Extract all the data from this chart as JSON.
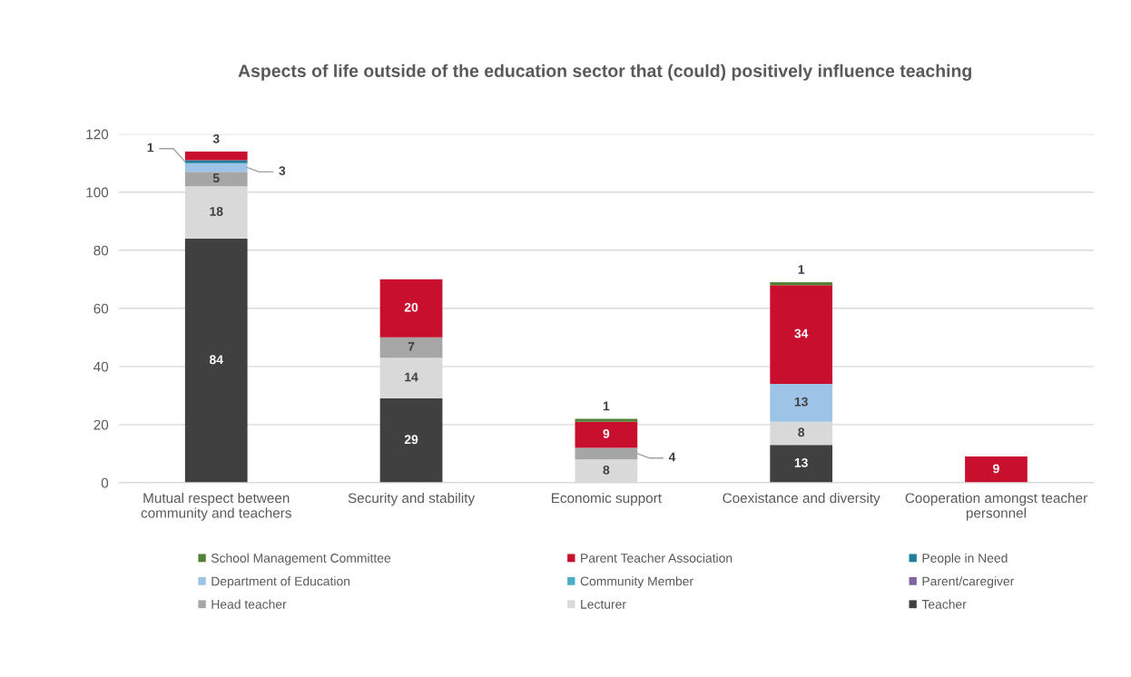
{
  "chart_data": {
    "type": "bar",
    "stacked": true,
    "title": "Aspects of life outside of the education sector that (could) positively influence teaching",
    "categories": [
      "Mutual respect between community and teachers",
      "Security and stability",
      "Economic support",
      "Coexistance and diversity",
      "Cooperation amongst teacher personnel"
    ],
    "series": [
      {
        "name": "Teacher",
        "color": "#404040",
        "values": [
          84,
          29,
          null,
          13,
          null
        ]
      },
      {
        "name": "Lecturer",
        "color": "#d9d9d9",
        "values": [
          18,
          14,
          8,
          8,
          null
        ]
      },
      {
        "name": "Head teacher",
        "color": "#a6a6a6",
        "values": [
          5,
          7,
          4,
          null,
          null
        ]
      },
      {
        "name": "Parent/caregiver",
        "color": "#8064a2",
        "values": [
          null,
          null,
          null,
          null,
          null
        ]
      },
      {
        "name": "Community Member",
        "color": "#4bacc6",
        "values": [
          null,
          null,
          null,
          null,
          null
        ]
      },
      {
        "name": "Department of Education",
        "color": "#9dc3e6",
        "values": [
          3,
          null,
          null,
          13,
          null
        ]
      },
      {
        "name": "People in Need",
        "color": "#1f7f9a",
        "values": [
          1,
          null,
          null,
          null,
          null
        ]
      },
      {
        "name": "Parent Teacher Association",
        "color": "#c8102e",
        "values": [
          3,
          20,
          9,
          34,
          9
        ]
      },
      {
        "name": "School Management Committee",
        "color": "#538135",
        "values": [
          null,
          null,
          1,
          1,
          null
        ]
      }
    ],
    "ylim": [
      0,
      120
    ],
    "yticks": [
      0,
      20,
      40,
      60,
      80,
      100,
      120
    ],
    "grid": "y",
    "legend": "bottom",
    "data_labels": true
  }
}
